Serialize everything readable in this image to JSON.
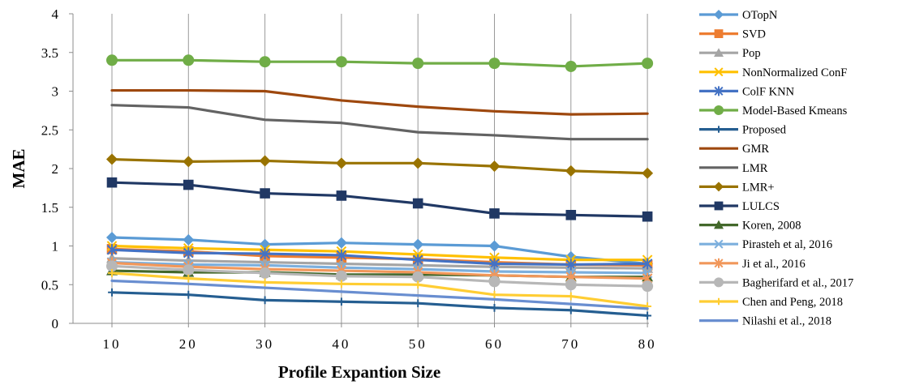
{
  "chart_data": {
    "type": "line",
    "title": "",
    "xlabel": "Profile Expantion Size",
    "ylabel": "MAE",
    "x": [
      10,
      20,
      30,
      40,
      50,
      60,
      70,
      80
    ],
    "x_tick_labels": [
      "10",
      "20",
      "30",
      "40",
      "50",
      "60",
      "70",
      "80"
    ],
    "ylim": [
      0,
      4
    ],
    "y_ticks": [
      0,
      0.5,
      1,
      1.5,
      2,
      2.5,
      3,
      3.5,
      4
    ],
    "y_tick_labels": [
      "0",
      "0.5",
      "1",
      "1.5",
      "2",
      "2.5",
      "3",
      "3.5",
      "4"
    ],
    "grid": "vertical",
    "legend_position": "right",
    "series": [
      {
        "name": "OTopN",
        "color": "#5b9bd5",
        "marker": "diamond",
        "values": [
          1.11,
          1.08,
          1.02,
          1.04,
          1.02,
          1.0,
          0.86,
          0.77
        ]
      },
      {
        "name": "SVD",
        "color": "#ed7d31",
        "marker": "square",
        "values": [
          0.96,
          0.93,
          0.87,
          0.85,
          0.83,
          0.79,
          0.76,
          0.75
        ]
      },
      {
        "name": "Pop",
        "color": "#a5a5a5",
        "marker": "triangle",
        "values": [
          0.84,
          0.81,
          0.79,
          0.77,
          0.75,
          0.73,
          0.72,
          0.71
        ]
      },
      {
        "name": "NonNormalized ConF",
        "color": "#ffc000",
        "marker": "x",
        "values": [
          1.0,
          0.97,
          0.95,
          0.93,
          0.89,
          0.85,
          0.82,
          0.82
        ]
      },
      {
        "name": "ColF KNN",
        "color": "#4472c4",
        "marker": "star",
        "values": [
          0.95,
          0.91,
          0.9,
          0.88,
          0.82,
          0.77,
          0.76,
          0.77
        ]
      },
      {
        "name": "Model-Based Kmeans",
        "color": "#70ad47",
        "marker": "circle",
        "values": [
          3.4,
          3.4,
          3.38,
          3.38,
          3.36,
          3.36,
          3.32,
          3.36
        ]
      },
      {
        "name": "Proposed",
        "color": "#255e91",
        "marker": "plus",
        "values": [
          0.4,
          0.37,
          0.3,
          0.28,
          0.26,
          0.2,
          0.17,
          0.1
        ]
      },
      {
        "name": "GMR",
        "color": "#9e480e",
        "marker": "none",
        "values": [
          3.01,
          3.01,
          3.0,
          2.88,
          2.8,
          2.74,
          2.7,
          2.71
        ]
      },
      {
        "name": "LMR",
        "color": "#636363",
        "marker": "none",
        "values": [
          2.82,
          2.79,
          2.63,
          2.59,
          2.47,
          2.43,
          2.38,
          2.38
        ]
      },
      {
        "name": "LMR+",
        "color": "#997300",
        "marker": "diamond",
        "values": [
          2.12,
          2.09,
          2.1,
          2.07,
          2.07,
          2.03,
          1.97,
          1.94
        ]
      },
      {
        "name": "LULCS",
        "color": "#203864",
        "marker": "square",
        "values": [
          1.82,
          1.79,
          1.68,
          1.65,
          1.55,
          1.42,
          1.4,
          1.38
        ]
      },
      {
        "name": "Koren, 2008",
        "color": "#43682b",
        "marker": "triangle",
        "values": [
          0.68,
          0.66,
          0.66,
          0.63,
          0.63,
          0.62,
          0.6,
          0.6
        ]
      },
      {
        "name": "Pirasteh et al, 2016",
        "color": "#7cafdd",
        "marker": "x",
        "values": [
          0.79,
          0.76,
          0.75,
          0.72,
          0.7,
          0.67,
          0.66,
          0.65
        ]
      },
      {
        "name": "Ji et al., 2016",
        "color": "#f1975a",
        "marker": "star",
        "values": [
          0.78,
          0.73,
          0.7,
          0.68,
          0.66,
          0.62,
          0.6,
          0.58
        ]
      },
      {
        "name": "Bagherifard et al., 2017",
        "color": "#b7b7b7",
        "marker": "circle",
        "values": [
          0.74,
          0.69,
          0.65,
          0.61,
          0.6,
          0.54,
          0.5,
          0.48
        ]
      },
      {
        "name": "Chen and Peng, 2018",
        "color": "#ffcd33",
        "marker": "plus",
        "values": [
          0.65,
          0.58,
          0.53,
          0.51,
          0.5,
          0.37,
          0.35,
          0.22
        ]
      },
      {
        "name": "Nilashi et al., 2018",
        "color": "#698ed0",
        "marker": "none",
        "values": [
          0.55,
          0.51,
          0.46,
          0.41,
          0.36,
          0.31,
          0.25,
          0.19
        ]
      }
    ]
  }
}
